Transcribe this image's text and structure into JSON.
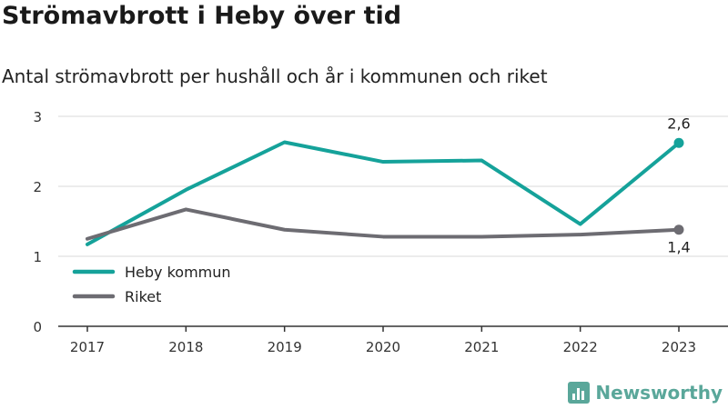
{
  "header": {
    "title": "Strömavbrott i Heby över tid",
    "subtitle": "Antal strömavbrott per hushåll och år i kommunen och riket"
  },
  "brand": {
    "name": "Newsworthy",
    "icon": "newsworthy-logo-icon",
    "color": "#5aa79a"
  },
  "chart_data": {
    "type": "line",
    "x": [
      2017,
      2018,
      2019,
      2020,
      2021,
      2022,
      2023
    ],
    "categories": [
      "2017",
      "2018",
      "2019",
      "2020",
      "2021",
      "2022",
      "2023"
    ],
    "ylim": [
      0,
      3
    ],
    "yticks": [
      0,
      1,
      2,
      3
    ],
    "grid": true,
    "legend_position": "bottom-left",
    "series": [
      {
        "name": "Heby kommun",
        "color": "#15a29a",
        "values": [
          1.17,
          1.95,
          2.63,
          2.35,
          2.37,
          1.46,
          2.62
        ],
        "end_label": "2,6"
      },
      {
        "name": "Riket",
        "color": "#6d6c72",
        "values": [
          1.25,
          1.67,
          1.38,
          1.28,
          1.28,
          1.31,
          1.38
        ],
        "end_label": "1,4"
      }
    ]
  }
}
